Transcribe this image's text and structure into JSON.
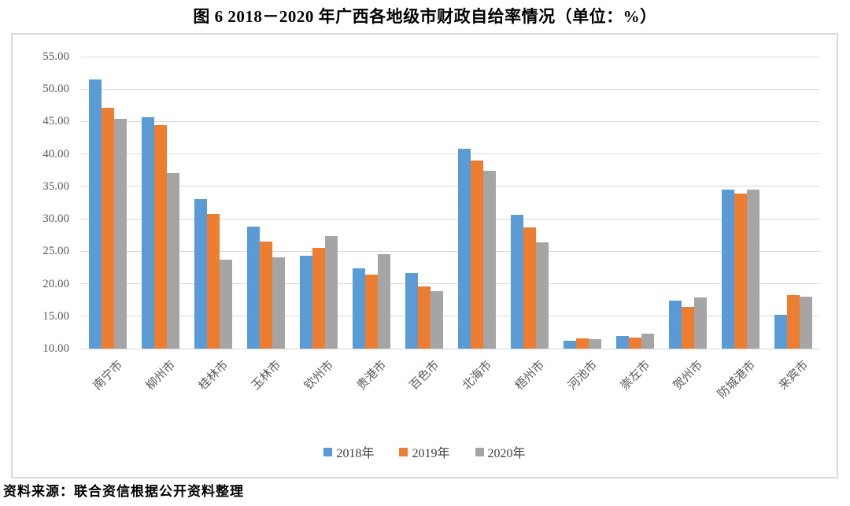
{
  "title": "图 6  2018－2020 年广西各地级市财政自给率情况（单位：%）",
  "source_note": "资料来源：联合资信根据公开资料整理",
  "colors": {
    "series_2018": "#5B9BD5",
    "series_2019": "#ED7D31",
    "series_2020": "#A5A5A5",
    "gridline": "#D9D9D9",
    "chart_border": "#D9D9D9",
    "axis_text": "#595959",
    "legend_text": "#3F3F3F"
  },
  "chart_data": {
    "type": "bar",
    "title": "图 6  2018－2020 年广西各地级市财政自给率情况（单位：%）",
    "categories": [
      "南宁市",
      "柳州市",
      "桂林市",
      "玉林市",
      "钦州市",
      "贵港市",
      "百色市",
      "北海市",
      "梧州市",
      "河池市",
      "崇左市",
      "贺州市",
      "防城港市",
      "来宾市"
    ],
    "series": [
      {
        "name": "2018年",
        "color": "#5B9BD5",
        "values": [
          51.5,
          45.7,
          33.1,
          28.8,
          24.3,
          22.4,
          21.6,
          40.8,
          30.6,
          11.2,
          12.0,
          17.4,
          34.5,
          15.2
        ]
      },
      {
        "name": "2019年",
        "color": "#ED7D31",
        "values": [
          47.1,
          44.4,
          30.8,
          26.5,
          25.5,
          21.4,
          19.6,
          39.0,
          28.7,
          11.6,
          11.7,
          16.4,
          33.9,
          18.2
        ]
      },
      {
        "name": "2020年",
        "color": "#A5A5A5",
        "values": [
          45.4,
          37.0,
          23.7,
          24.1,
          27.3,
          24.5,
          18.9,
          37.4,
          26.4,
          11.4,
          12.3,
          17.9,
          34.5,
          18.0
        ]
      }
    ],
    "xlabel": "",
    "ylabel": "",
    "ylim": [
      10,
      55
    ],
    "ytick_step": 5,
    "ytick_labels": [
      "10.00",
      "15.00",
      "20.00",
      "25.00",
      "30.00",
      "35.00",
      "40.00",
      "45.00",
      "50.00",
      "55.00"
    ],
    "grid": true,
    "legend_position": "bottom"
  }
}
